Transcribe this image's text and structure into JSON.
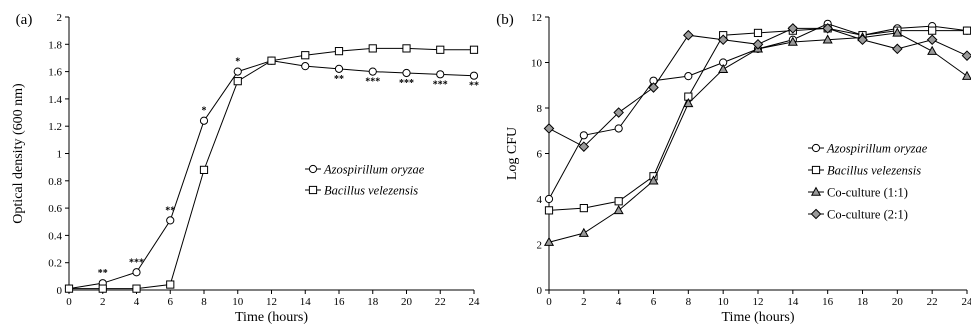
{
  "chart_data": [
    {
      "panel_label": "(a)",
      "type": "line",
      "xlabel": "Time (hours)",
      "ylabel": "Optical density (600 nm)",
      "x": [
        0,
        2,
        4,
        6,
        8,
        10,
        12,
        14,
        16,
        18,
        20,
        22,
        24
      ],
      "xlim": [
        0,
        24
      ],
      "ylim": [
        0,
        2
      ],
      "xticks": [
        "0",
        "2",
        "4",
        "6",
        "8",
        "10",
        "12",
        "14",
        "16",
        "18",
        "20",
        "22",
        "24"
      ],
      "yticks": [
        "0",
        "0.2",
        "0.4",
        "0.6",
        "0.8",
        "1",
        "1.2",
        "1.4",
        "1.6",
        "1.8",
        "2"
      ],
      "grid": false,
      "legend_position": "center-right",
      "series": [
        {
          "name": "Azospirillum oryzae",
          "marker": "circle",
          "italic": true,
          "values": [
            0.01,
            0.05,
            0.13,
            0.51,
            1.24,
            1.6,
            1.68,
            1.64,
            1.62,
            1.6,
            1.59,
            1.58,
            1.57
          ]
        },
        {
          "name": "Bacillus velezensis",
          "marker": "square",
          "italic": true,
          "values": [
            0.01,
            0.01,
            0.01,
            0.04,
            0.88,
            1.53,
            1.68,
            1.72,
            1.75,
            1.77,
            1.77,
            1.76,
            1.76
          ]
        }
      ],
      "annotations": [
        {
          "x": 2,
          "label": "**",
          "anchor": "above"
        },
        {
          "x": 4,
          "label": "***",
          "anchor": "above"
        },
        {
          "x": 6,
          "label": "**",
          "anchor": "above"
        },
        {
          "x": 8,
          "label": "*",
          "anchor": "above"
        },
        {
          "x": 10,
          "label": "*",
          "anchor": "above"
        },
        {
          "x": 16,
          "label": "**",
          "anchor": "below"
        },
        {
          "x": 18,
          "label": "***",
          "anchor": "below"
        },
        {
          "x": 20,
          "label": "***",
          "anchor": "below"
        },
        {
          "x": 22,
          "label": "***",
          "anchor": "below"
        },
        {
          "x": 24,
          "label": "**",
          "anchor": "below"
        }
      ]
    },
    {
      "panel_label": "(b)",
      "type": "line",
      "xlabel": "Time (hours)",
      "ylabel": "Log CFU",
      "x": [
        0,
        2,
        4,
        6,
        8,
        10,
        12,
        14,
        16,
        18,
        20,
        22,
        24
      ],
      "xlim": [
        0,
        24
      ],
      "ylim": [
        0,
        12
      ],
      "xticks": [
        "0",
        "2",
        "4",
        "6",
        "8",
        "10",
        "12",
        "14",
        "16",
        "18",
        "20",
        "22",
        "24"
      ],
      "yticks": [
        "0",
        "2",
        "4",
        "6",
        "8",
        "10",
        "12"
      ],
      "grid": false,
      "legend_position": "center-right",
      "series": [
        {
          "name": "Azospirillum oryzae",
          "marker": "circle",
          "italic": true,
          "values": [
            4.0,
            6.8,
            7.1,
            9.2,
            9.4,
            10.0,
            10.6,
            11.0,
            11.7,
            11.2,
            11.5,
            11.6,
            11.4
          ]
        },
        {
          "name": "Bacillus velezensis",
          "marker": "square",
          "italic": true,
          "values": [
            3.5,
            3.6,
            3.9,
            5.0,
            8.5,
            11.2,
            11.3,
            11.4,
            11.5,
            11.2,
            11.4,
            11.4,
            11.4
          ]
        },
        {
          "name": "Co-culture (1:1)",
          "marker": "triangle",
          "italic": false,
          "values": [
            2.1,
            2.5,
            3.5,
            4.8,
            8.2,
            9.7,
            10.6,
            10.9,
            11.0,
            11.1,
            11.3,
            10.5,
            9.4
          ]
        },
        {
          "name": "Co-culture (2:1)",
          "marker": "diamond",
          "italic": false,
          "values": [
            7.1,
            6.3,
            7.8,
            8.9,
            11.2,
            11.0,
            10.8,
            11.5,
            11.5,
            11.0,
            10.6,
            11.0,
            10.3
          ]
        }
      ]
    }
  ]
}
